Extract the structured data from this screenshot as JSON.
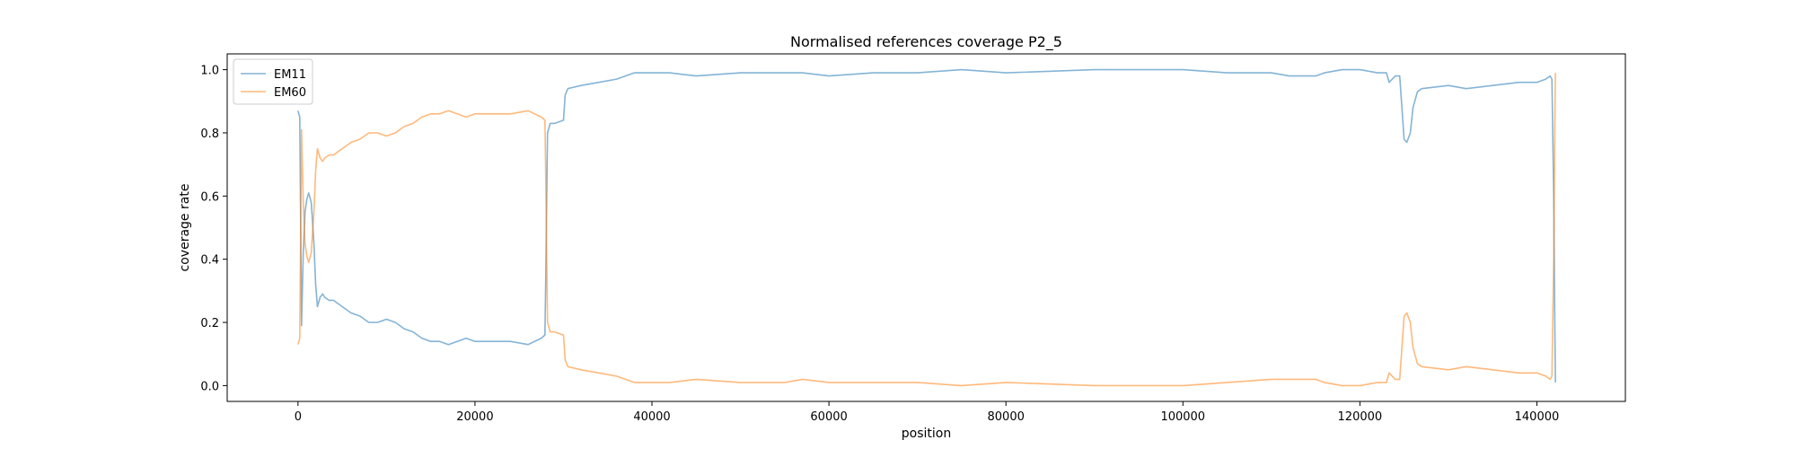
{
  "chart_data": {
    "type": "line",
    "title": "Normalised references coverage P2_5",
    "xlabel": "position",
    "ylabel": "coverage rate",
    "xlim": [
      -8000,
      150000
    ],
    "ylim": [
      -0.05,
      1.05
    ],
    "xticks": [
      0,
      20000,
      40000,
      60000,
      80000,
      100000,
      120000,
      140000
    ],
    "xtick_labels": [
      "0",
      "20000",
      "40000",
      "60000",
      "80000",
      "100000",
      "120000",
      "140000"
    ],
    "yticks": [
      0.0,
      0.2,
      0.4,
      0.6,
      0.8,
      1.0
    ],
    "ytick_labels": [
      "0.0",
      "0.2",
      "0.4",
      "0.6",
      "0.8",
      "1.0"
    ],
    "grid": false,
    "legend": "upper-left",
    "series": [
      {
        "name": "EM11",
        "color": "#1f77b4",
        "x": [
          0,
          200,
          400,
          600,
          800,
          1000,
          1200,
          1500,
          1800,
          2000,
          2200,
          2500,
          2800,
          3000,
          3500,
          4000,
          5000,
          6000,
          7000,
          8000,
          9000,
          10000,
          11000,
          12000,
          13000,
          14000,
          15000,
          16000,
          17000,
          18000,
          19000,
          20000,
          22000,
          24000,
          26000,
          27500,
          27900,
          28000,
          28200,
          28500,
          29000,
          30000,
          30200,
          30500,
          32000,
          34000,
          36000,
          37000,
          38000,
          40000,
          42000,
          45000,
          50000,
          55000,
          57000,
          60000,
          65000,
          70000,
          75000,
          80000,
          90000,
          100000,
          105000,
          110000,
          112000,
          115000,
          116000,
          118000,
          120000,
          122000,
          123000,
          123300,
          124000,
          124500,
          125000,
          125300,
          125700,
          126000,
          126500,
          127000,
          130000,
          132000,
          135000,
          138000,
          140000,
          141000,
          141500,
          141700,
          141900,
          142000,
          142100
        ],
        "y": [
          0.87,
          0.85,
          0.19,
          0.42,
          0.55,
          0.59,
          0.61,
          0.58,
          0.45,
          0.32,
          0.25,
          0.28,
          0.29,
          0.28,
          0.27,
          0.27,
          0.25,
          0.23,
          0.22,
          0.2,
          0.2,
          0.21,
          0.2,
          0.18,
          0.17,
          0.15,
          0.14,
          0.14,
          0.13,
          0.14,
          0.15,
          0.14,
          0.14,
          0.14,
          0.13,
          0.15,
          0.16,
          0.35,
          0.8,
          0.83,
          0.83,
          0.84,
          0.92,
          0.94,
          0.95,
          0.96,
          0.97,
          0.98,
          0.99,
          0.99,
          0.99,
          0.98,
          0.99,
          0.99,
          0.99,
          0.98,
          0.99,
          0.99,
          1.0,
          0.99,
          1.0,
          1.0,
          0.99,
          0.99,
          0.98,
          0.98,
          0.99,
          1.0,
          1.0,
          0.99,
          0.99,
          0.96,
          0.98,
          0.98,
          0.78,
          0.77,
          0.8,
          0.88,
          0.93,
          0.94,
          0.95,
          0.94,
          0.95,
          0.96,
          0.96,
          0.97,
          0.98,
          0.97,
          0.6,
          0.26,
          0.01
        ]
      },
      {
        "name": "EM60",
        "color": "#ff7f0e",
        "x": [
          0,
          200,
          400,
          600,
          800,
          1000,
          1200,
          1500,
          1800,
          2000,
          2200,
          2500,
          2800,
          3000,
          3500,
          4000,
          5000,
          6000,
          7000,
          8000,
          9000,
          10000,
          11000,
          12000,
          13000,
          14000,
          15000,
          16000,
          17000,
          18000,
          19000,
          20000,
          22000,
          24000,
          26000,
          27500,
          27900,
          28000,
          28200,
          28500,
          29000,
          30000,
          30200,
          30500,
          32000,
          34000,
          36000,
          37000,
          38000,
          40000,
          42000,
          45000,
          50000,
          55000,
          57000,
          60000,
          65000,
          70000,
          75000,
          80000,
          90000,
          100000,
          105000,
          110000,
          112000,
          115000,
          116000,
          118000,
          120000,
          122000,
          123000,
          123300,
          124000,
          124500,
          125000,
          125300,
          125700,
          126000,
          126500,
          127000,
          130000,
          132000,
          135000,
          138000,
          140000,
          141000,
          141500,
          141700,
          141900,
          142000,
          142100
        ],
        "y": [
          0.13,
          0.15,
          0.81,
          0.58,
          0.45,
          0.41,
          0.39,
          0.42,
          0.55,
          0.68,
          0.75,
          0.72,
          0.71,
          0.72,
          0.73,
          0.73,
          0.75,
          0.77,
          0.78,
          0.8,
          0.8,
          0.79,
          0.8,
          0.82,
          0.83,
          0.85,
          0.86,
          0.86,
          0.87,
          0.86,
          0.85,
          0.86,
          0.86,
          0.86,
          0.87,
          0.85,
          0.84,
          0.65,
          0.2,
          0.17,
          0.17,
          0.16,
          0.08,
          0.06,
          0.05,
          0.04,
          0.03,
          0.02,
          0.01,
          0.01,
          0.01,
          0.02,
          0.01,
          0.01,
          0.02,
          0.01,
          0.01,
          0.01,
          0.0,
          0.01,
          0.0,
          0.0,
          0.01,
          0.02,
          0.02,
          0.02,
          0.01,
          0.0,
          0.0,
          0.01,
          0.01,
          0.04,
          0.02,
          0.02,
          0.22,
          0.23,
          0.2,
          0.12,
          0.07,
          0.06,
          0.05,
          0.06,
          0.05,
          0.04,
          0.04,
          0.03,
          0.02,
          0.03,
          0.4,
          0.74,
          0.99
        ]
      }
    ]
  }
}
